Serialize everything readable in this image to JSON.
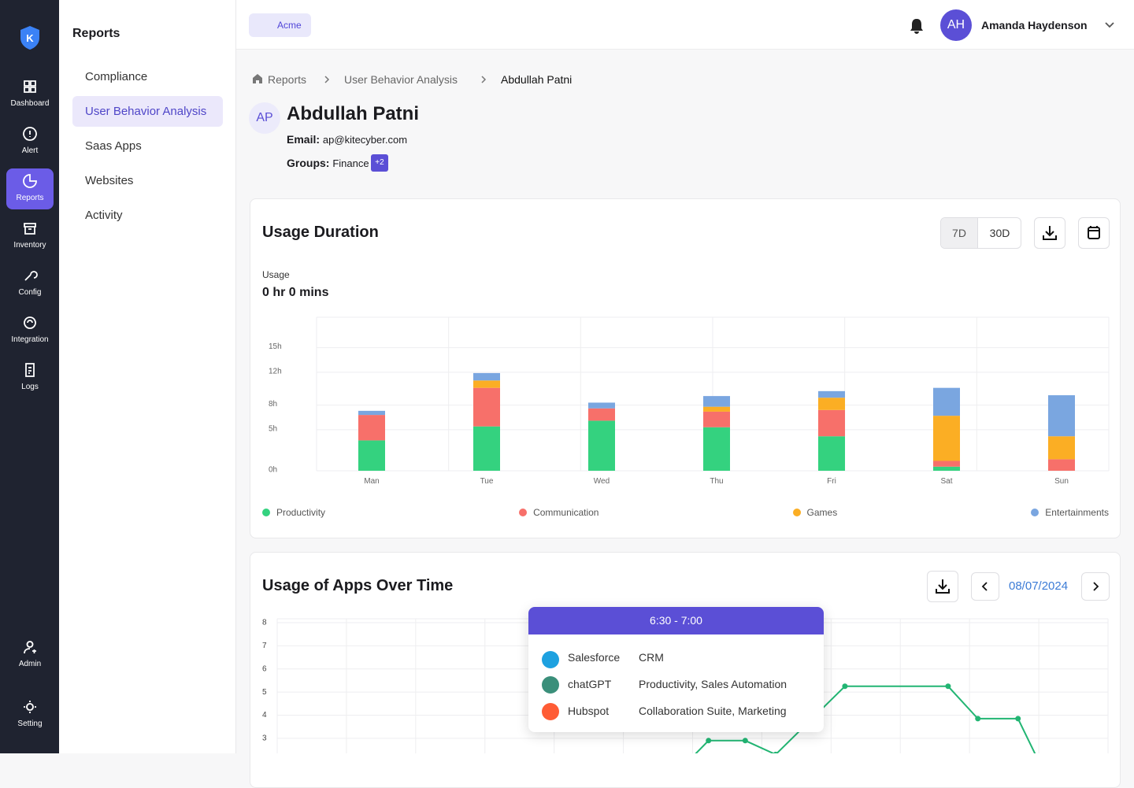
{
  "nav": [
    "Dashboard",
    "Alert",
    "Reports",
    "Inventory",
    "Config",
    "Integration",
    "Logs"
  ],
  "nav_bottom": [
    "Admin",
    "Setting"
  ],
  "submenu": {
    "title": "Reports",
    "items": [
      "Compliance",
      "User Behavior Analysis",
      "Saas Apps",
      "Websites",
      "Activity"
    ]
  },
  "header": {
    "org": "Acme",
    "user_initials": "AH",
    "user_name": "Amanda Haydenson"
  },
  "breadcrumb": [
    "Reports",
    "User Behavior Analysis",
    "Abdullah Patni"
  ],
  "profile": {
    "initials": "AP",
    "name": "Abdullah Patni",
    "email_label": "Email:",
    "email": "ap@kitecyber.com",
    "groups_label": "Groups:",
    "group": "Finance",
    "more_groups": "+2"
  },
  "usage_card": {
    "ranges": [
      "7D",
      "30D"
    ],
    "usage_label": "Usage",
    "usage_value": "0 hr 0 mins"
  },
  "apps_card": {
    "date": "08/07/2024"
  },
  "chart_data": [
    {
      "type": "bar",
      "stacked": true,
      "title": "Usage Duration",
      "categories": [
        "Man",
        "Tue",
        "Wed",
        "Thu",
        "Fri",
        "Sat",
        "Sun"
      ],
      "series": [
        {
          "name": "Productivity",
          "color": "#34d27f",
          "values": [
            3.7,
            5.4,
            6.1,
            5.3,
            4.2,
            0.5,
            0
          ]
        },
        {
          "name": "Communication",
          "color": "#f7706a",
          "values": [
            3.1,
            4.7,
            1.5,
            1.9,
            3.2,
            0.7,
            1.4
          ]
        },
        {
          "name": "Games",
          "color": "#fbae24",
          "values": [
            0,
            0.9,
            0,
            0.6,
            1.5,
            5.5,
            2.8
          ]
        },
        {
          "name": "Entertainments",
          "color": "#7aa6e0",
          "values": [
            0.5,
            0.9,
            0.7,
            1.3,
            0.8,
            3.4,
            5.0
          ]
        }
      ],
      "ylim": [
        0,
        18.7
      ],
      "yticks": [
        {
          "value": 0,
          "label": "0h"
        },
        {
          "value": 5,
          "label": "5h"
        },
        {
          "value": 8,
          "label": "8h"
        },
        {
          "value": 12,
          "label": "12h"
        },
        {
          "value": 15,
          "label": "15h"
        }
      ],
      "grid": true,
      "legend": "bottom"
    },
    {
      "type": "line",
      "title": "Usage of Apps Over Time",
      "color": "#22b573",
      "x": [
        6.0,
        6.23,
        6.76,
        7.2,
        8.2,
        9.69,
        10.12,
        10.7,
        11.0
      ],
      "values": [
        2.2,
        2.9,
        2.9,
        2.3,
        5.25,
        5.25,
        3.85,
        3.85,
        2.0
      ],
      "xlim": [
        0,
        12
      ],
      "ylim": [
        0,
        8.17
      ],
      "yticks": [
        3,
        4,
        5,
        6,
        7,
        8
      ],
      "grid": true
    }
  ],
  "tooltip": {
    "title": "6:30 - 7:00",
    "rows": [
      {
        "app": "Salesforce",
        "category": "CRM"
      },
      {
        "app": "chatGPT",
        "category": "Productivity, Sales Automation"
      },
      {
        "app": "Hubspot",
        "category": "Collaboration Suite, Marketing"
      }
    ]
  }
}
